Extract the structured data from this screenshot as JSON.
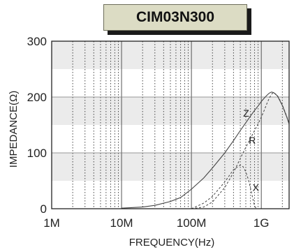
{
  "chart_data": {
    "type": "line",
    "title": "CIM03N300",
    "xlabel": "FREQUENCY(Hz)",
    "ylabel": "IMPEDANCE(Ω)",
    "x_scale": "log",
    "xlim": [
      1000000,
      2500000000
    ],
    "ylim": [
      0,
      300
    ],
    "x_ticks": [
      {
        "value": 1000000,
        "label": "1M"
      },
      {
        "value": 10000000,
        "label": "10M"
      },
      {
        "value": 100000000,
        "label": "100M"
      },
      {
        "value": 1000000000,
        "label": "1G"
      }
    ],
    "y_ticks": [
      {
        "value": 0,
        "label": "0"
      },
      {
        "value": 100,
        "label": "100"
      },
      {
        "value": 200,
        "label": "200"
      },
      {
        "value": 300,
        "label": "300"
      }
    ],
    "grid": true,
    "shaded_bands": [
      [
        50,
        100
      ],
      [
        150,
        200
      ],
      [
        250,
        300
      ]
    ],
    "series": [
      {
        "name": "Z",
        "style": "solid",
        "x": [
          10000000,
          20000000,
          30000000,
          50000000,
          70000000,
          100000000,
          150000000,
          200000000,
          300000000,
          400000000,
          500000000,
          600000000,
          700000000,
          800000000,
          900000000,
          1000000000,
          1100000000,
          1200000000,
          1300000000,
          1400000000,
          1500000000,
          1700000000,
          2000000000,
          2300000000,
          2500000000
        ],
        "values": [
          1,
          3,
          6,
          13,
          20,
          35,
          55,
          73,
          100,
          122,
          140,
          154,
          166,
          176,
          184,
          192,
          198,
          203,
          207,
          209,
          208,
          202,
          185,
          165,
          152
        ]
      },
      {
        "name": "R",
        "style": "dashed",
        "x": [
          100000000,
          150000000,
          200000000,
          300000000,
          400000000,
          500000000,
          600000000,
          700000000,
          800000000,
          900000000,
          1000000000,
          1100000000,
          1200000000,
          1300000000,
          1400000000,
          1500000000,
          1700000000,
          2000000000,
          2300000000,
          2500000000
        ],
        "values": [
          0,
          3,
          12,
          38,
          65,
          90,
          110,
          126,
          140,
          152,
          164,
          176,
          188,
          198,
          205,
          208,
          203,
          186,
          166,
          152
        ]
      },
      {
        "name": "X",
        "style": "dashed",
        "x": [
          100000000,
          150000000,
          200000000,
          300000000,
          400000000,
          500000000,
          550000000,
          600000000,
          650000000,
          700000000,
          750000000,
          800000000,
          850000000
        ],
        "values": [
          0,
          10,
          22,
          48,
          70,
          78,
          75,
          66,
          53,
          37,
          20,
          5,
          0
        ]
      }
    ],
    "annotations": [
      {
        "text": "Z",
        "x": 550000000,
        "y": 165
      },
      {
        "text": "R",
        "x": 660000000,
        "y": 116
      },
      {
        "text": "X",
        "x": 750000000,
        "y": 32
      }
    ]
  }
}
